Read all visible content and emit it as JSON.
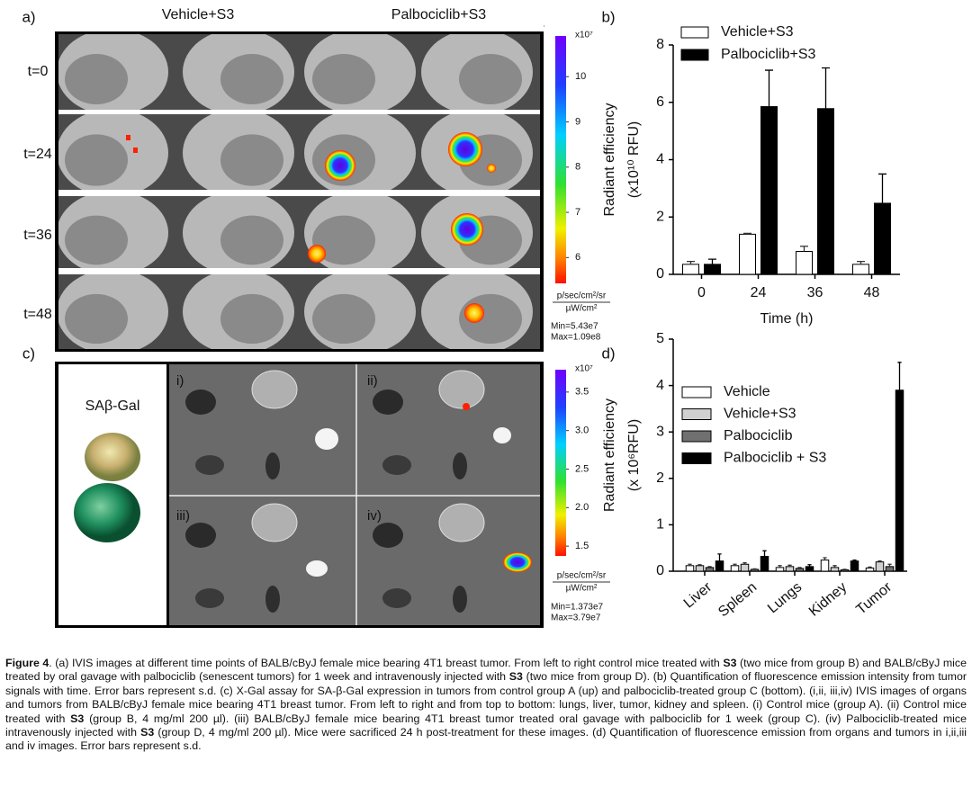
{
  "panel_labels": [
    "a)",
    "b)",
    "c)",
    "d)"
  ],
  "panel_a": {
    "group_labels": [
      "Vehicle+S3",
      "Palbociclib+S3"
    ],
    "row_labels": [
      "t=0",
      "t=24",
      "t=36",
      "t=48"
    ],
    "colorbar": {
      "multiplier": "x10⁷",
      "clim": [
        5.43,
        10.9
      ],
      "ticks": [
        10,
        9,
        8,
        7,
        6
      ],
      "units": [
        "p/sec/cm²/sr",
        "µW/cm²"
      ],
      "min_max": [
        "Min=5.43e7",
        "Max=1.09e8"
      ]
    }
  },
  "panel_c": {
    "stain_label": "SAβ-Gal",
    "quadrant_labels": [
      "i)",
      "ii)",
      "iii)",
      "iv)"
    ],
    "colorbar": {
      "multiplier": "x10⁷",
      "clim": [
        1.373,
        3.79
      ],
      "ticks": [
        3.5,
        {
          "value": 3,
          "label": "3.0"
        },
        2.5,
        {
          "value": 2,
          "label": "2.0"
        },
        1.5
      ],
      "units": [
        "p/sec/cm²/sr",
        "µW/cm²"
      ],
      "min_max": [
        "Min=1.373e7",
        "Max=3.79e7"
      ]
    }
  },
  "chart_data": [
    {
      "type": "bar",
      "y_label": [
        "Radiant efficiency",
        "(x10¹⁰ RFU)"
      ],
      "x_label": "Time  (h)",
      "categories": [
        "0",
        "24",
        "36",
        "48"
      ],
      "ylim": [
        0,
        8
      ],
      "yticks": [
        0,
        2,
        4,
        6,
        8
      ],
      "series": [
        {
          "name": "Vehicle+S3",
          "color": "#ffffff",
          "values": [
            0.35,
            1.4,
            0.8,
            0.35
          ],
          "errors": [
            0.1,
            0.03,
            0.18,
            0.1
          ]
        },
        {
          "name": "Palbociclib+S3",
          "color": "#000000",
          "values": [
            0.35,
            5.85,
            5.78,
            2.48
          ],
          "errors": [
            0.18,
            1.27,
            1.42,
            1.02
          ]
        }
      ]
    },
    {
      "type": "bar",
      "y_label": [
        "Radiant efficiency",
        "(x 10⁶RFU)"
      ],
      "categories": [
        "Liver",
        "Spleen",
        "Lungs",
        "Kidney",
        "Tumor"
      ],
      "ylim": [
        0,
        5
      ],
      "yticks": [
        0,
        1,
        2,
        3,
        4,
        5
      ],
      "series": [
        {
          "name": "Vehicle",
          "color": "#ffffff",
          "values": [
            0.12,
            0.12,
            0.08,
            0.24,
            0.07
          ],
          "errors": [
            0.03,
            0.03,
            0.04,
            0.05,
            0.02
          ]
        },
        {
          "name": "Vehicle+S3",
          "color": "#d0d0d0",
          "values": [
            0.12,
            0.15,
            0.1,
            0.08,
            0.2
          ],
          "errors": [
            0.02,
            0.03,
            0.03,
            0.04,
            0.02
          ]
        },
        {
          "name": "Palbociclib",
          "color": "#707070",
          "values": [
            0.08,
            0.04,
            0.06,
            0.03,
            0.1
          ],
          "errors": [
            0.02,
            0.01,
            0.02,
            0.01,
            0.05
          ]
        },
        {
          "name": "Palbociclib + S3",
          "color": "#000000",
          "values": [
            0.22,
            0.32,
            0.1,
            0.22,
            3.9
          ],
          "errors": [
            0.15,
            0.12,
            0.04,
            0.02,
            0.6
          ]
        }
      ]
    }
  ],
  "caption": [
    {
      "text": "Figure 4",
      "bold": true
    },
    ". (a) IVIS images at different time points of BALB/cByJ female mice bearing 4T1 breast tumor. From left to right control mice treated with ",
    {
      "text": "S3",
      "bold": true
    },
    " (two mice from group B) and BALB/cByJ mice treated by oral gavage with palbociclib (senescent tumors) for 1 week and intravenously injected with ",
    {
      "text": "S3",
      "bold": true
    },
    " (two mice from group D). (b) Quantification of fluorescence emission intensity from tumor signals with time. Error bars represent s.d. (c) X-Gal assay for SA-β-Gal expression in tumors from control group A (up) and palbociclib-treated group C (bottom). (i,ii, iii,iv) IVIS images of organs and tumors from BALB/cByJ female mice bearing 4T1 breast tumor. From left to right and from top to bottom: lungs, liver, tumor, kidney and spleen. (i) Control mice (group A). (ii) Control mice treated with ",
    {
      "text": "S3",
      "bold": true
    },
    " (group B, 4 mg/ml 200 µl). (iii) BALB/cByJ female mice bearing 4T1 breast tumor treated oral gavage with palbociclib for 1 week (group C). (iv) Palbociclib-treated mice intravenously injected with ",
    {
      "text": "S3",
      "bold": true
    },
    " (group D, 4 mg/ml 200 µl). Mice were sacrificed 24 h post-treatment for these images. (d) Quantification of fluorescence emission from organs and tumors in i,ii,iii and iv images. Error bars represent s.d."
  ]
}
